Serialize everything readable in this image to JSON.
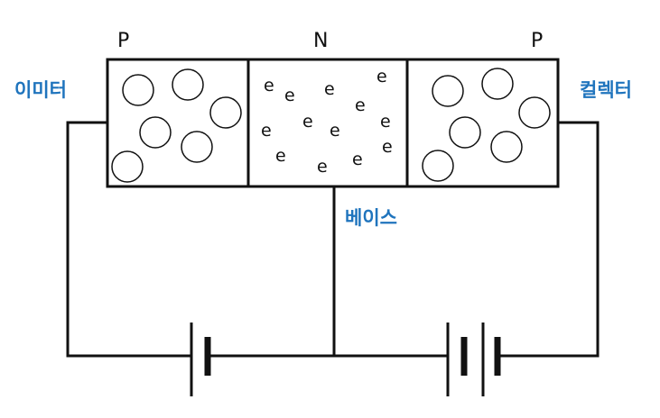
{
  "regions": [
    {
      "label": "P"
    },
    {
      "label": "N"
    },
    {
      "label": "P"
    }
  ],
  "terminals": {
    "emitter": "이미터",
    "collector": "컬렉터",
    "base": "베이스"
  },
  "carrier_symbol": "e",
  "colors": {
    "line": "#111111",
    "terminal_text": "#1f74bd",
    "background": "#ffffff"
  }
}
